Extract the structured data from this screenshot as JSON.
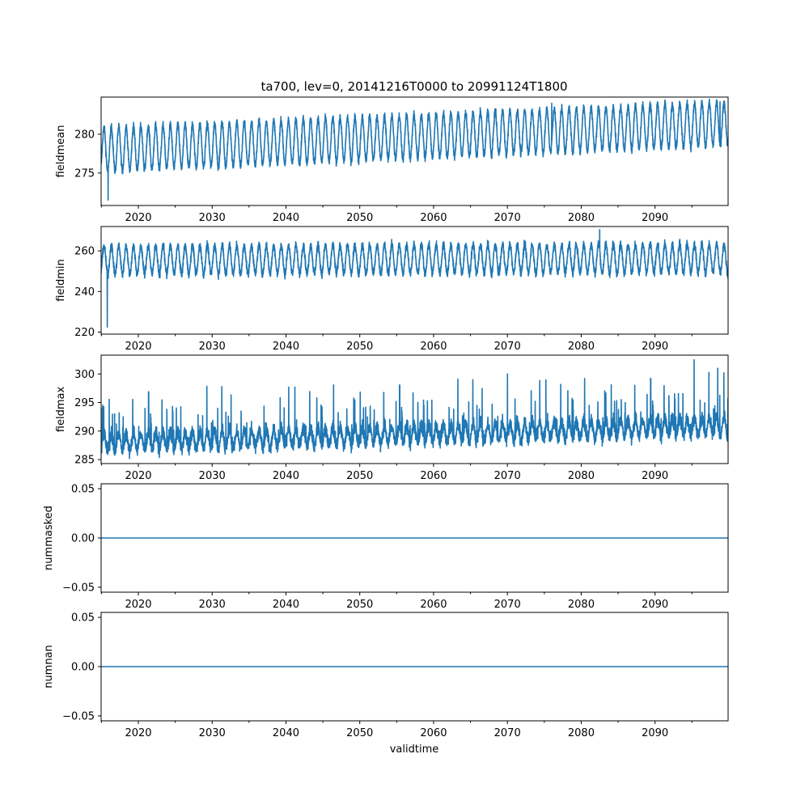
{
  "chart_data": {
    "type": "line",
    "title": "ta700, lev=0, 20141216T0000 to 20991124T1800",
    "xlabel": "validtime",
    "x_range": [
      2014.96,
      2099.9
    ],
    "x_ticks": [
      2020,
      2030,
      2040,
      2050,
      2060,
      2070,
      2080,
      2090
    ],
    "x_tick_labels": [
      "2020",
      "2030",
      "2040",
      "2050",
      "2060",
      "2070",
      "2080",
      "2090"
    ],
    "series_color": "#1f77b4",
    "panels": [
      {
        "name": "fieldmean",
        "ylabel": "fieldmean",
        "ylim": [
          270.8,
          284.8
        ],
        "yticks": [
          275,
          280
        ],
        "ytick_labels": [
          "275",
          "280"
        ],
        "pattern": {
          "base_start": 278.0,
          "trend_per_decade": 0.4,
          "seasonal_amplitude": 2.8,
          "noise": 0.5
        },
        "notable_points": [
          {
            "x": 2015.9,
            "y": 271.5
          },
          {
            "x": 2076.0,
            "y": 284.0
          },
          {
            "x": 2098.8,
            "y": 284.2
          }
        ]
      },
      {
        "name": "fieldmin",
        "ylabel": "fieldmin",
        "ylim": [
          219,
          272
        ],
        "yticks": [
          220,
          240,
          260
        ],
        "ytick_labels": [
          "220",
          "240",
          "260"
        ],
        "pattern": {
          "base_start": 255.5,
          "trend_per_decade": 0.1,
          "seasonal_amplitude": 7.0,
          "noise": 2.0
        },
        "notable_points": [
          {
            "x": 2015.8,
            "y": 222.5
          },
          {
            "x": 2082.5,
            "y": 270.5
          }
        ]
      },
      {
        "name": "fieldmax",
        "ylabel": "fieldmax",
        "ylim": [
          284.3,
          303.3
        ],
        "yticks": [
          285,
          290,
          295,
          300
        ],
        "ytick_labels": [
          "285",
          "290",
          "295",
          "300"
        ],
        "pattern": {
          "base_start": 288.0,
          "trend_per_decade": 0.35,
          "seasonal_amplitude": 1.5,
          "noise": 1.2
        },
        "notable_points": [
          {
            "x": 2095.3,
            "y": 302.5
          },
          {
            "x": 2098.5,
            "y": 301.0
          },
          {
            "x": 2070.0,
            "y": 300.0
          }
        ]
      },
      {
        "name": "nummasked",
        "ylabel": "nummasked",
        "ylim": [
          -0.055,
          0.055
        ],
        "yticks": [
          -0.05,
          0.0,
          0.05
        ],
        "ytick_labels": [
          "−0.05",
          "0.00",
          "0.05"
        ],
        "constant_value": 0
      },
      {
        "name": "numnan",
        "ylabel": "numnan",
        "ylim": [
          -0.055,
          0.055
        ],
        "yticks": [
          -0.05,
          0.0,
          0.05
        ],
        "ytick_labels": [
          "−0.05",
          "0.00",
          "0.05"
        ],
        "constant_value": 0
      }
    ]
  }
}
